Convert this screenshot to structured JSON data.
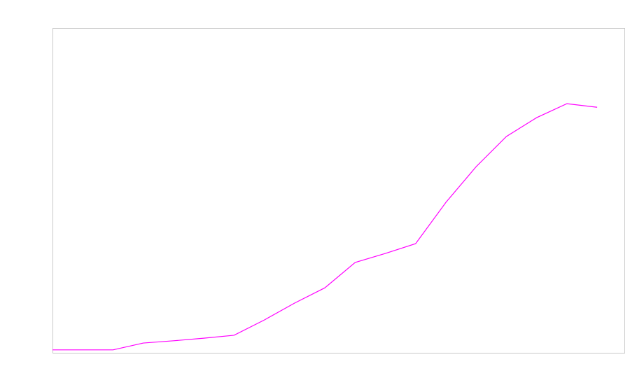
{
  "chart_data": {
    "type": "line",
    "x": [
      0,
      1,
      2,
      3,
      4,
      5,
      6,
      7,
      8,
      9,
      10,
      11,
      12,
      13,
      14,
      15,
      16,
      17,
      18
    ],
    "series": [
      {
        "color": "#ff00ff",
        "values": [
          0.9,
          0.9,
          0.9,
          3.0,
          3.7,
          4.5,
          5.4,
          10.1,
          15.3,
          20.0,
          27.8,
          30.6,
          33.6,
          46.3,
          57.3,
          66.6,
          72.4,
          76.7,
          75.6
        ]
      }
    ],
    "xlim": [
      0,
      18.9
    ],
    "ylim": [
      0,
      100
    ]
  }
}
